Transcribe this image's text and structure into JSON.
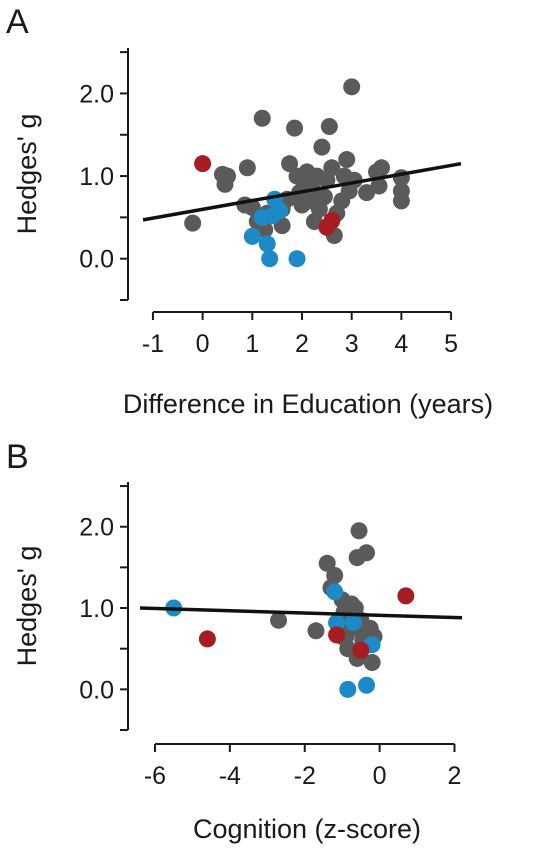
{
  "chart_data": [
    {
      "panel": "A",
      "type": "scatter",
      "xlabel": "Difference in Education (years)",
      "ylabel": "Hedges' g",
      "xlim": [
        -1.2,
        5.2
      ],
      "ylim": [
        -0.5,
        2.55
      ],
      "x_ticks": [
        -1,
        0,
        1,
        2,
        3,
        4,
        5
      ],
      "y_ticks": [
        -0.5,
        0.0,
        0.5,
        1.0,
        1.5,
        2.0,
        2.5
      ],
      "y_tick_labels": [
        "",
        "0.0",
        "",
        "1.0",
        "",
        "2.0",
        ""
      ],
      "fit_line": {
        "x": [
          -1.2,
          5.2
        ],
        "y": [
          0.47,
          1.15
        ]
      },
      "colors": {
        "gray": "#5a5a5a",
        "blue": "#1d8ac7",
        "red": "#a61c22"
      },
      "series": [
        {
          "color": "gray",
          "points": [
            [
              -0.2,
              0.43
            ],
            [
              0.4,
              1.02
            ],
            [
              0.45,
              0.9
            ],
            [
              0.5,
              1.0
            ],
            [
              0.9,
              1.1
            ],
            [
              0.85,
              0.65
            ],
            [
              1.0,
              0.62
            ],
            [
              1.1,
              0.45
            ],
            [
              1.2,
              1.7
            ],
            [
              1.3,
              0.55
            ],
            [
              1.25,
              0.35
            ],
            [
              1.6,
              0.6
            ],
            [
              1.7,
              0.72
            ],
            [
              1.75,
              1.15
            ],
            [
              1.85,
              1.58
            ],
            [
              1.9,
              1.0
            ],
            [
              1.95,
              0.8
            ],
            [
              2.0,
              0.65
            ],
            [
              2.05,
              0.9
            ],
            [
              2.1,
              1.05
            ],
            [
              2.15,
              0.7
            ],
            [
              2.2,
              0.85
            ],
            [
              2.3,
              1.0
            ],
            [
              2.35,
              0.6
            ],
            [
              2.45,
              0.75
            ],
            [
              2.5,
              0.95
            ],
            [
              2.55,
              1.6
            ],
            [
              2.6,
              1.1
            ],
            [
              2.65,
              0.28
            ],
            [
              2.7,
              0.55
            ],
            [
              2.8,
              0.7
            ],
            [
              2.85,
              1.0
            ],
            [
              2.9,
              1.2
            ],
            [
              2.95,
              0.82
            ],
            [
              3.0,
              2.08
            ],
            [
              3.05,
              0.95
            ],
            [
              3.3,
              0.8
            ],
            [
              3.5,
              1.05
            ],
            [
              3.55,
              0.88
            ],
            [
              3.6,
              1.1
            ],
            [
              4.0,
              0.82
            ],
            [
              4.0,
              0.98
            ],
            [
              4.0,
              0.7
            ],
            [
              2.4,
              1.35
            ],
            [
              2.25,
              0.45
            ],
            [
              1.6,
              0.4
            ]
          ]
        },
        {
          "color": "blue",
          "points": [
            [
              1.0,
              0.27
            ],
            [
              1.2,
              0.5
            ],
            [
              1.3,
              0.18
            ],
            [
              1.35,
              0.0
            ],
            [
              1.45,
              0.72
            ],
            [
              1.4,
              0.52
            ],
            [
              1.55,
              0.58
            ],
            [
              1.9,
              0.0
            ]
          ]
        },
        {
          "color": "red",
          "points": [
            [
              0.0,
              1.15
            ],
            [
              2.5,
              0.38
            ],
            [
              2.6,
              0.46
            ]
          ]
        }
      ]
    },
    {
      "panel": "B",
      "type": "scatter",
      "xlabel": "Cognition (z-score)",
      "ylabel": "Hedges' g",
      "xlim": [
        -6.4,
        2.2
      ],
      "ylim": [
        -0.5,
        2.55
      ],
      "x_ticks": [
        -6,
        -4,
        -2,
        0,
        2
      ],
      "x_tick_labels": [
        "-6",
        "-4",
        "-2",
        "0",
        "2"
      ],
      "y_ticks": [
        -0.5,
        0.0,
        0.5,
        1.0,
        1.5,
        2.0,
        2.5
      ],
      "y_tick_labels": [
        "",
        "0.0",
        "",
        "1.0",
        "",
        "2.0",
        ""
      ],
      "fit_line": {
        "x": [
          -6.4,
          2.2
        ],
        "y": [
          1.0,
          0.88
        ]
      },
      "colors": {
        "gray": "#5a5a5a",
        "blue": "#1d8ac7",
        "red": "#a61c22"
      },
      "series": [
        {
          "color": "gray",
          "points": [
            [
              -2.7,
              0.85
            ],
            [
              -1.7,
              0.72
            ],
            [
              -1.4,
              1.55
            ],
            [
              -1.3,
              1.25
            ],
            [
              -1.2,
              1.4
            ],
            [
              -1.1,
              0.8
            ],
            [
              -1.0,
              1.1
            ],
            [
              -0.95,
              0.95
            ],
            [
              -0.9,
              0.65
            ],
            [
              -0.85,
              0.5
            ],
            [
              -0.8,
              0.85
            ],
            [
              -0.75,
              1.05
            ],
            [
              -0.7,
              0.75
            ],
            [
              -0.65,
              1.0
            ],
            [
              -0.6,
              0.38
            ],
            [
              -0.55,
              1.95
            ],
            [
              -0.6,
              1.62
            ],
            [
              -0.35,
              1.68
            ],
            [
              -0.5,
              0.85
            ],
            [
              -0.45,
              0.6
            ],
            [
              -0.4,
              0.7
            ],
            [
              -0.3,
              0.55
            ],
            [
              -0.2,
              0.33
            ],
            [
              -0.25,
              0.75
            ],
            [
              -1.0,
              0.65
            ],
            [
              -0.15,
              0.65
            ]
          ]
        },
        {
          "color": "blue",
          "points": [
            [
              -5.5,
              1.0
            ],
            [
              -1.2,
              1.2
            ],
            [
              -1.15,
              0.82
            ],
            [
              -0.85,
              0.0
            ],
            [
              -0.35,
              0.05
            ],
            [
              -0.2,
              0.55
            ],
            [
              -0.7,
              0.82
            ]
          ]
        },
        {
          "color": "red",
          "points": [
            [
              -4.6,
              0.62
            ],
            [
              -1.15,
              0.67
            ],
            [
              -0.5,
              0.48
            ],
            [
              0.7,
              1.15
            ]
          ]
        }
      ]
    }
  ],
  "panels": {
    "a_letter": "A",
    "b_letter": "B"
  }
}
